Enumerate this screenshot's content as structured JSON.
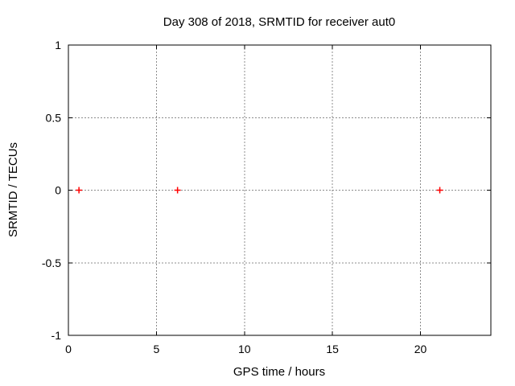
{
  "window": {
    "background": "#ffffff"
  },
  "chart_data": {
    "type": "scatter",
    "title": "Day 308 of 2018, SRMTID for receiver aut0",
    "xlabel": "GPS time / hours",
    "ylabel": "SRMTID / TECUs",
    "xlim": [
      0,
      24
    ],
    "ylim": [
      -1,
      1
    ],
    "xticks": [
      {
        "v": 0,
        "label": "0"
      },
      {
        "v": 5,
        "label": "5"
      },
      {
        "v": 10,
        "label": "10"
      },
      {
        "v": 15,
        "label": "15"
      },
      {
        "v": 20,
        "label": "20"
      }
    ],
    "yticks": [
      {
        "v": -1,
        "label": "-1"
      },
      {
        "v": -0.5,
        "label": "-0.5"
      },
      {
        "v": 0,
        "label": "0"
      },
      {
        "v": 0.5,
        "label": "0.5"
      },
      {
        "v": 1,
        "label": "1"
      }
    ],
    "grid": true,
    "grid_color": "#8c8c8c",
    "axis_color": "#000000",
    "legend": "none",
    "marker": "plus",
    "marker_color": "#ff0000",
    "series": [
      {
        "name": "SRMTID",
        "points": [
          {
            "x": 0.6,
            "y": 0.0
          },
          {
            "x": 6.2,
            "y": 0.0
          },
          {
            "x": 21.1,
            "y": 0.0
          }
        ]
      }
    ]
  }
}
